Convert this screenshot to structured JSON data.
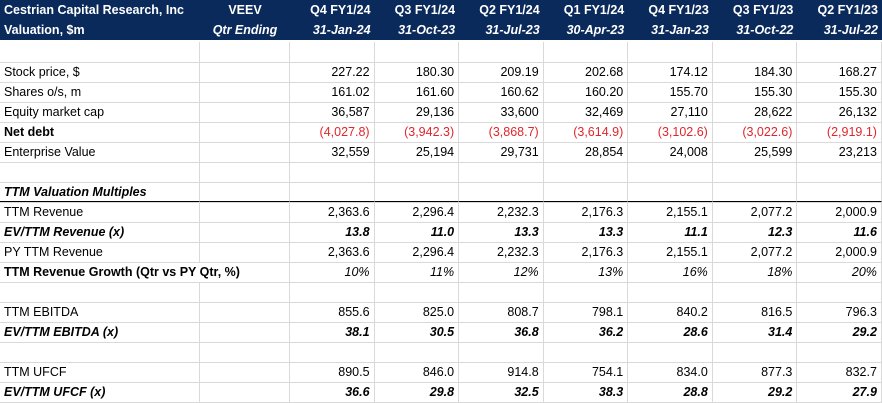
{
  "header": {
    "company": "Cestrian Capital Research, Inc",
    "ticker": "VEEV",
    "subtitle": "Valuation, $m",
    "period_label": "Qtr Ending",
    "quarters": [
      "Q4 FY1/24",
      "Q3 FY1/24",
      "Q2 FY1/24",
      "Q1 FY1/24",
      "Q4 FY1/23",
      "Q3 FY1/23",
      "Q2 FY1/23"
    ],
    "dates": [
      "31-Jan-24",
      "31-Oct-23",
      "31-Jul-23",
      "30-Apr-23",
      "31-Jan-23",
      "31-Oct-22",
      "31-Jul-22"
    ]
  },
  "rows": {
    "stock_price": {
      "label": "Stock price, $",
      "values": [
        "227.22",
        "180.30",
        "209.19",
        "202.68",
        "174.12",
        "184.30",
        "168.27"
      ]
    },
    "shares": {
      "label": "Shares o/s, m",
      "values": [
        "161.02",
        "161.60",
        "160.62",
        "160.20",
        "155.70",
        "155.30",
        "155.30"
      ]
    },
    "equity_cap": {
      "label": "Equity market cap",
      "values": [
        "36,587",
        "29,136",
        "33,600",
        "32,469",
        "27,110",
        "28,622",
        "26,132"
      ]
    },
    "net_debt": {
      "label": "Net debt",
      "values": [
        "(4,027.8)",
        "(3,942.3)",
        "(3,868.7)",
        "(3,614.9)",
        "(3,102.6)",
        "(3,022.6)",
        "(2,919.1)"
      ]
    },
    "ev": {
      "label": "Enterprise Value",
      "values": [
        "32,559",
        "25,194",
        "29,731",
        "28,854",
        "24,008",
        "25,599",
        "23,213"
      ]
    },
    "ttm_section": {
      "label": "TTM Valuation Multiples"
    },
    "ttm_revenue": {
      "label": "TTM Revenue",
      "values": [
        "2,363.6",
        "2,296.4",
        "2,232.3",
        "2,176.3",
        "2,155.1",
        "2,077.2",
        "2,000.9"
      ]
    },
    "ev_ttm_revenue": {
      "label": "EV/TTM Revenue (x)",
      "values": [
        "13.8",
        "11.0",
        "13.3",
        "13.3",
        "11.1",
        "12.3",
        "11.6"
      ]
    },
    "py_ttm_revenue": {
      "label": "PY TTM Revenue",
      "values": [
        "2,363.6",
        "2,296.4",
        "2,232.3",
        "2,176.3",
        "2,155.1",
        "2,077.2",
        "2,000.9"
      ]
    },
    "ttm_rev_growth": {
      "label": "TTM Revenue Growth (Qtr vs PY Qtr, %)",
      "values": [
        "10%",
        "11%",
        "12%",
        "13%",
        "16%",
        "18%",
        "20%"
      ]
    },
    "ttm_ebitda": {
      "label": "TTM EBITDA",
      "values": [
        "855.6",
        "825.0",
        "808.7",
        "798.1",
        "840.2",
        "816.5",
        "796.3"
      ]
    },
    "ev_ttm_ebitda": {
      "label": "EV/TTM EBITDA (x)",
      "values": [
        "38.1",
        "30.5",
        "36.8",
        "36.2",
        "28.6",
        "31.4",
        "29.2"
      ]
    },
    "ttm_ufcf": {
      "label": "TTM UFCF",
      "values": [
        "890.5",
        "846.0",
        "914.8",
        "754.1",
        "834.0",
        "877.3",
        "832.7"
      ]
    },
    "ev_ttm_ufcf": {
      "label": "EV/TTM UFCF (x)",
      "values": [
        "36.6",
        "29.8",
        "32.5",
        "38.3",
        "28.8",
        "29.2",
        "27.9"
      ]
    }
  },
  "colors": {
    "header_bg": "#0b2a5c",
    "negative": "#e0262b",
    "gridline": "#d9d9d9"
  }
}
